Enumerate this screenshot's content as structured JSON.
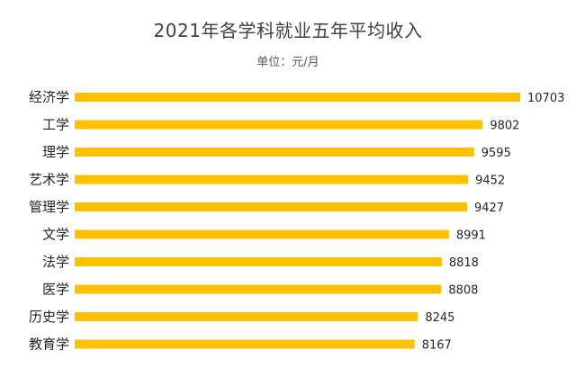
{
  "chart_data": {
    "type": "bar",
    "orientation": "horizontal",
    "title": "2021年各学科就业五年平均收入",
    "subtitle": "单位：元/月",
    "categories": [
      "经济学",
      "工学",
      "理学",
      "艺术学",
      "管理学",
      "文学",
      "法学",
      "医学",
      "历史学",
      "教育学"
    ],
    "values": [
      10703,
      9802,
      9595,
      9452,
      9427,
      8991,
      8818,
      8808,
      8245,
      8167
    ],
    "xlim": [
      0,
      10703
    ],
    "grid": false,
    "legend": "none",
    "bar_color": "#FFC000"
  }
}
